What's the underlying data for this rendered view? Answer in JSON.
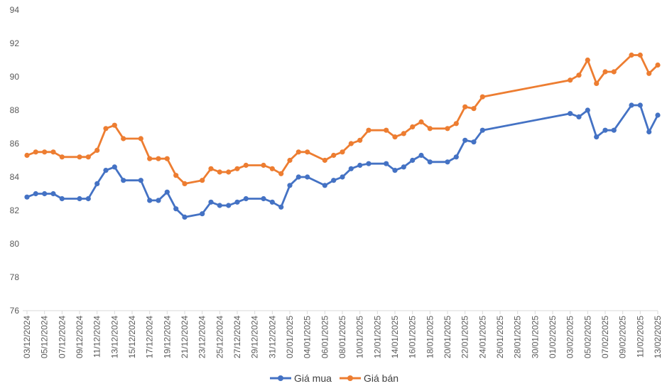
{
  "chart_data": {
    "type": "line",
    "title": "",
    "xlabel": "",
    "ylabel": "",
    "ylim": [
      76,
      94
    ],
    "y_ticks": [
      76,
      78,
      80,
      82,
      84,
      86,
      88,
      90,
      92,
      94
    ],
    "grid": false,
    "legend_position": "bottom",
    "x_tick_labels": [
      "03/12/2024",
      "05/12/2024",
      "07/12/2024",
      "09/12/2024",
      "11/12/2024",
      "13/12/2024",
      "15/12/2024",
      "17/12/2024",
      "19/12/2024",
      "21/12/2024",
      "23/12/2024",
      "25/12/2024",
      "27/12/2024",
      "29/12/2024",
      "31/12/2024",
      "02/01/2025",
      "04/01/2025",
      "06/01/2025",
      "08/01/2025",
      "10/01/2025",
      "12/01/2025",
      "14/01/2025",
      "16/01/2025",
      "18/01/2025",
      "20/01/2025",
      "22/01/2025",
      "24/01/2025",
      "26/01/2025",
      "28/01/2025",
      "30/01/2025",
      "01/02/2025",
      "03/02/2025",
      "05/02/2025",
      "07/02/2025",
      "09/02/2025",
      "11/02/2025",
      "13/02/2025"
    ],
    "x": [
      "03/12/2024",
      "04/12/2024",
      "05/12/2024",
      "06/12/2024",
      "07/12/2024",
      "09/12/2024",
      "10/12/2024",
      "11/12/2024",
      "12/12/2024",
      "13/12/2024",
      "14/12/2024",
      "16/12/2024",
      "17/12/2024",
      "18/12/2024",
      "19/12/2024",
      "20/12/2024",
      "21/12/2024",
      "23/12/2024",
      "24/12/2024",
      "25/12/2024",
      "26/12/2024",
      "27/12/2024",
      "28/12/2024",
      "30/12/2024",
      "31/12/2024",
      "01/01/2025",
      "02/01/2025",
      "03/01/2025",
      "04/01/2025",
      "06/01/2025",
      "07/01/2025",
      "08/01/2025",
      "09/01/2025",
      "10/01/2025",
      "11/01/2025",
      "13/01/2025",
      "14/01/2025",
      "15/01/2025",
      "16/01/2025",
      "17/01/2025",
      "18/01/2025",
      "20/01/2025",
      "21/01/2025",
      "22/01/2025",
      "23/01/2025",
      "24/01/2025",
      "03/02/2025",
      "04/02/2025",
      "05/02/2025",
      "06/02/2025",
      "07/02/2025",
      "08/02/2025",
      "10/02/2025",
      "11/02/2025",
      "12/02/2025",
      "13/02/2025"
    ],
    "series": [
      {
        "name": "Giá mua",
        "color": "#4472C4",
        "values": [
          82.8,
          83.0,
          83.0,
          83.0,
          82.7,
          82.7,
          82.7,
          83.6,
          84.4,
          84.6,
          83.8,
          83.8,
          82.6,
          82.6,
          83.1,
          82.1,
          81.6,
          81.8,
          82.5,
          82.3,
          82.3,
          82.5,
          82.7,
          82.7,
          82.5,
          82.2,
          83.5,
          84.0,
          84.0,
          83.5,
          83.8,
          84.0,
          84.5,
          84.7,
          84.8,
          84.8,
          84.4,
          84.6,
          85.0,
          85.3,
          84.9,
          84.9,
          85.2,
          86.2,
          86.1,
          86.8,
          87.8,
          87.6,
          88.0,
          86.4,
          86.8,
          86.8,
          88.3,
          88.3,
          86.7,
          87.7
        ]
      },
      {
        "name": "Giá bán",
        "color": "#ED7D31",
        "values": [
          85.3,
          85.5,
          85.5,
          85.5,
          85.2,
          85.2,
          85.2,
          85.6,
          86.9,
          87.1,
          86.3,
          86.3,
          85.1,
          85.1,
          85.1,
          84.1,
          83.6,
          83.8,
          84.5,
          84.3,
          84.3,
          84.5,
          84.7,
          84.7,
          84.5,
          84.2,
          85.0,
          85.5,
          85.5,
          85.0,
          85.3,
          85.5,
          86.0,
          86.2,
          86.8,
          86.8,
          86.4,
          86.6,
          87.0,
          87.3,
          86.9,
          86.9,
          87.2,
          88.2,
          88.1,
          88.8,
          89.8,
          90.1,
          91.0,
          89.6,
          90.3,
          90.3,
          91.3,
          91.3,
          90.2,
          90.7
        ]
      }
    ]
  }
}
